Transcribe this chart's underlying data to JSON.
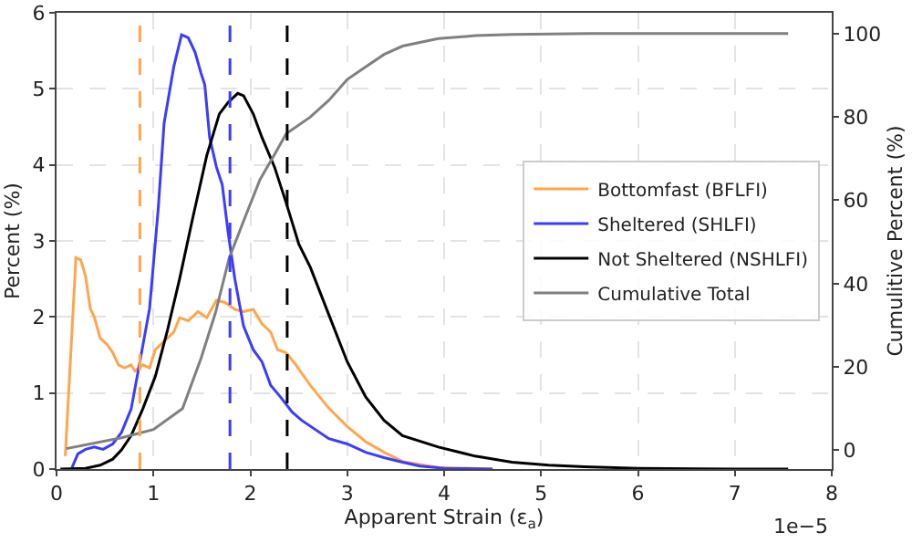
{
  "chart_data": {
    "type": "line",
    "xlabel": "Apparent Strain (ε$_{a}$)",
    "ylabel": "Percent (%)",
    "y2label": "Cumulitive Percent (%)",
    "xlim": [
      0,
      8
    ],
    "xticks": [
      0,
      1,
      2,
      3,
      4,
      5,
      6,
      7,
      8
    ],
    "ylim": [
      0,
      6
    ],
    "yticks": [
      0,
      1,
      2,
      3,
      4,
      5,
      6
    ],
    "y2lim": [
      -4.5,
      105
    ],
    "y2ticks": [
      0,
      20,
      40,
      60,
      80,
      100
    ],
    "grid": true,
    "legend": "right",
    "line_style": "solid",
    "marker": "none",
    "annotations": [
      "1e−5"
    ],
    "ref_lines": [
      {
        "axis": "x",
        "value": 0.86,
        "color": "#ffa64d",
        "line_style": "dashed"
      },
      {
        "axis": "x",
        "value": 1.79,
        "color": "#3c3cff",
        "line_style": "dashed"
      },
      {
        "axis": "x",
        "value": 2.38,
        "color": "#000000",
        "line_style": "dashed"
      }
    ],
    "series": [
      {
        "name": "Bottomfast (BFLFI)",
        "color": "#ffa64d",
        "x": [
          0.09,
          0.2,
          0.25,
          0.3,
          0.35,
          0.39,
          0.45,
          0.52,
          0.58,
          0.64,
          0.7,
          0.77,
          0.81,
          0.89,
          0.96,
          1.02,
          1.11,
          1.21,
          1.27,
          1.36,
          1.46,
          1.55,
          1.65,
          1.74,
          1.84,
          1.93,
          2.03,
          2.12,
          2.21,
          2.28,
          2.37,
          2.47,
          2.53,
          2.62,
          2.81,
          3.0,
          3.19,
          3.38,
          3.57,
          3.75,
          3.94,
          4.5
        ],
        "values": [
          0.17,
          2.78,
          2.75,
          2.53,
          2.1,
          2.0,
          1.72,
          1.64,
          1.53,
          1.37,
          1.33,
          1.37,
          1.29,
          1.37,
          1.33,
          1.57,
          1.68,
          1.8,
          1.99,
          1.95,
          2.07,
          1.99,
          2.22,
          2.19,
          2.1,
          2.07,
          2.1,
          1.91,
          1.8,
          1.57,
          1.53,
          1.37,
          1.26,
          1.1,
          0.8,
          0.56,
          0.36,
          0.22,
          0.1,
          0.06,
          0.02,
          0
        ]
      },
      {
        "name": "Sheltered (SHLFI)",
        "color": "#3c3cff",
        "x": [
          0.16,
          0.22,
          0.3,
          0.39,
          0.48,
          0.58,
          0.67,
          0.77,
          0.86,
          0.96,
          1.05,
          1.11,
          1.21,
          1.29,
          1.36,
          1.43,
          1.49,
          1.53,
          1.58,
          1.65,
          1.71,
          1.77,
          1.84,
          1.93,
          2.03,
          2.12,
          2.21,
          2.31,
          2.43,
          2.53,
          2.81,
          3.0,
          3.19,
          3.38,
          3.57,
          3.75,
          4.0,
          4.5
        ],
        "values": [
          0.02,
          0.2,
          0.26,
          0.29,
          0.26,
          0.33,
          0.48,
          0.79,
          1.41,
          2.11,
          3.43,
          4.55,
          5.29,
          5.71,
          5.67,
          5.48,
          5.21,
          5.05,
          4.36,
          3.97,
          3.74,
          3.12,
          2.5,
          1.88,
          1.57,
          1.41,
          1.1,
          0.95,
          0.75,
          0.64,
          0.4,
          0.33,
          0.22,
          0.15,
          0.09,
          0.04,
          0.01,
          0
        ]
      },
      {
        "name": "Not Sheltered (NSHLFI)",
        "color": "#000000",
        "x": [
          0.04,
          0.3,
          0.45,
          0.58,
          0.67,
          0.77,
          0.89,
          1.02,
          1.14,
          1.27,
          1.4,
          1.55,
          1.68,
          1.77,
          1.87,
          1.93,
          2.03,
          2.12,
          2.25,
          2.37,
          2.5,
          2.62,
          2.81,
          3.0,
          3.19,
          3.38,
          3.57,
          3.94,
          4.32,
          4.7,
          5.08,
          5.45,
          6.0,
          7.0,
          7.55
        ],
        "values": [
          0,
          0.01,
          0.05,
          0.13,
          0.25,
          0.44,
          0.79,
          1.22,
          1.8,
          2.5,
          3.27,
          4.12,
          4.67,
          4.82,
          4.94,
          4.91,
          4.67,
          4.36,
          3.97,
          3.5,
          2.96,
          2.65,
          2.03,
          1.41,
          0.95,
          0.64,
          0.44,
          0.29,
          0.17,
          0.09,
          0.05,
          0.03,
          0.01,
          0,
          0
        ]
      },
      {
        "name": "Cumulative Total",
        "color": "#808080",
        "axis": "y2",
        "x": [
          0.1,
          0.67,
          1.0,
          1.3,
          1.49,
          1.64,
          1.78,
          1.93,
          2.1,
          2.25,
          2.37,
          2.62,
          2.81,
          3.0,
          3.19,
          3.38,
          3.57,
          3.94,
          4.32,
          4.7,
          5.5,
          7.55
        ],
        "values": [
          0.4,
          3,
          5,
          10,
          22,
          33,
          46,
          55,
          65,
          71,
          76,
          80,
          84,
          89,
          92,
          95,
          97,
          98.8,
          99.5,
          99.8,
          100,
          100
        ]
      }
    ]
  }
}
